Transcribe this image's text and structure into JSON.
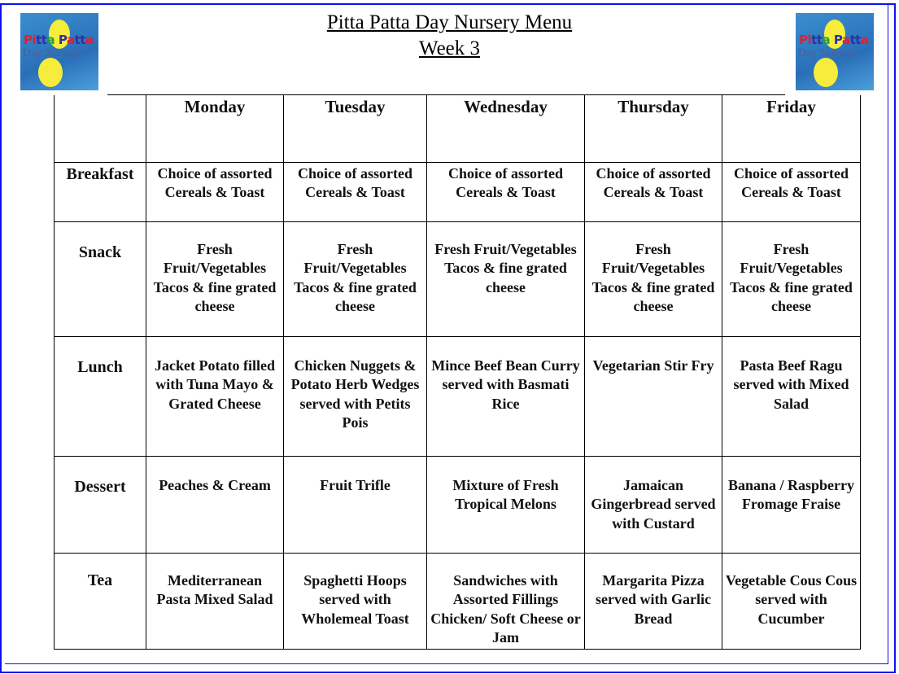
{
  "header": {
    "title": "Pitta Patta Day Nursery Menu",
    "subtitle": "Week 3",
    "logo_text": "Pitta Patta Day Nursery"
  },
  "days": [
    "Monday",
    "Tuesday",
    "Wednesday",
    "Thursday",
    "Friday"
  ],
  "meals": [
    {
      "label": "Breakfast",
      "items": [
        "Choice of assorted Cereals & Toast",
        "Choice of assorted Cereals & Toast",
        "Choice of assorted Cereals & Toast",
        "Choice of assorted Cereals & Toast",
        "Choice of assorted Cereals & Toast"
      ]
    },
    {
      "label": "Snack",
      "items": [
        "Fresh Fruit/Vegetables Tacos & fine grated cheese",
        "Fresh Fruit/Vegetables Tacos & fine grated cheese",
        "Fresh Fruit/Vegetables Tacos & fine grated cheese",
        "Fresh Fruit/Vegetables Tacos & fine grated cheese",
        "Fresh Fruit/Vegetables Tacos & fine grated cheese"
      ]
    },
    {
      "label": "Lunch",
      "items": [
        "Jacket Potato filled with Tuna Mayo & Grated Cheese",
        "Chicken Nuggets & Potato Herb Wedges served with Petits Pois",
        "Mince Beef Bean Curry served with Basmati Rice",
        "Vegetarian Stir Fry",
        "Pasta Beef Ragu served with Mixed Salad"
      ]
    },
    {
      "label": "Dessert",
      "items": [
        "Peaches & Cream",
        "Fruit Trifle",
        "Mixture of Fresh Tropical Melons",
        "Jamaican Gingerbread served with Custard",
        "Banana / Raspberry Fromage Fraise"
      ]
    },
    {
      "label": "Tea",
      "items": [
        "Mediterranean Pasta Mixed Salad",
        "Spaghetti Hoops served with Wholemeal Toast",
        "Sandwiches with Assorted Fillings Chicken/ Soft Cheese or Jam",
        "Margarita Pizza served with Garlic Bread",
        "Vegetable Cous Cous served with Cucumber"
      ]
    }
  ]
}
